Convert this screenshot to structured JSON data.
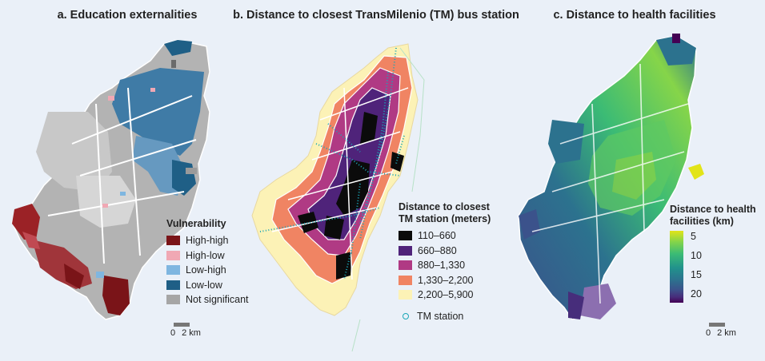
{
  "panels": {
    "a": {
      "title": "a. Education externalities",
      "legend": {
        "title": "Vulnerability",
        "items": [
          {
            "label": "High-high",
            "color": "#7a1418"
          },
          {
            "label": "High-low",
            "color": "#f0a8b4"
          },
          {
            "label": "Low-high",
            "color": "#7fb6e0"
          },
          {
            "label": "Low-low",
            "color": "#1f5f86"
          },
          {
            "label": "Not significant",
            "color": "#a6a6a6"
          }
        ]
      },
      "scale": {
        "start": "0",
        "end": "2 km"
      }
    },
    "b": {
      "title": "b. Distance to closest TransMilenio (TM) bus station",
      "legend": {
        "title_line1": "Distance to closest",
        "title_line2": "TM station (meters)",
        "items": [
          {
            "label": "110–660",
            "color": "#0b0b0b"
          },
          {
            "label": "660–880",
            "color": "#4f237a"
          },
          {
            "label": "880–1,330",
            "color": "#b03a84"
          },
          {
            "label": "1,330–2,200",
            "color": "#f08463"
          },
          {
            "label": "2,200–5,900",
            "color": "#fcf2b6"
          }
        ],
        "station_label": "TM station",
        "station_color": "#1aa6b7"
      }
    },
    "c": {
      "title": "c. Distance to health facilities",
      "legend": {
        "title_line1": "Distance to health",
        "title_line2": "facilities (km)",
        "ticks": [
          "5",
          "10",
          "15",
          "20"
        ]
      },
      "scale": {
        "start": "0",
        "end": "2 km"
      }
    }
  }
}
